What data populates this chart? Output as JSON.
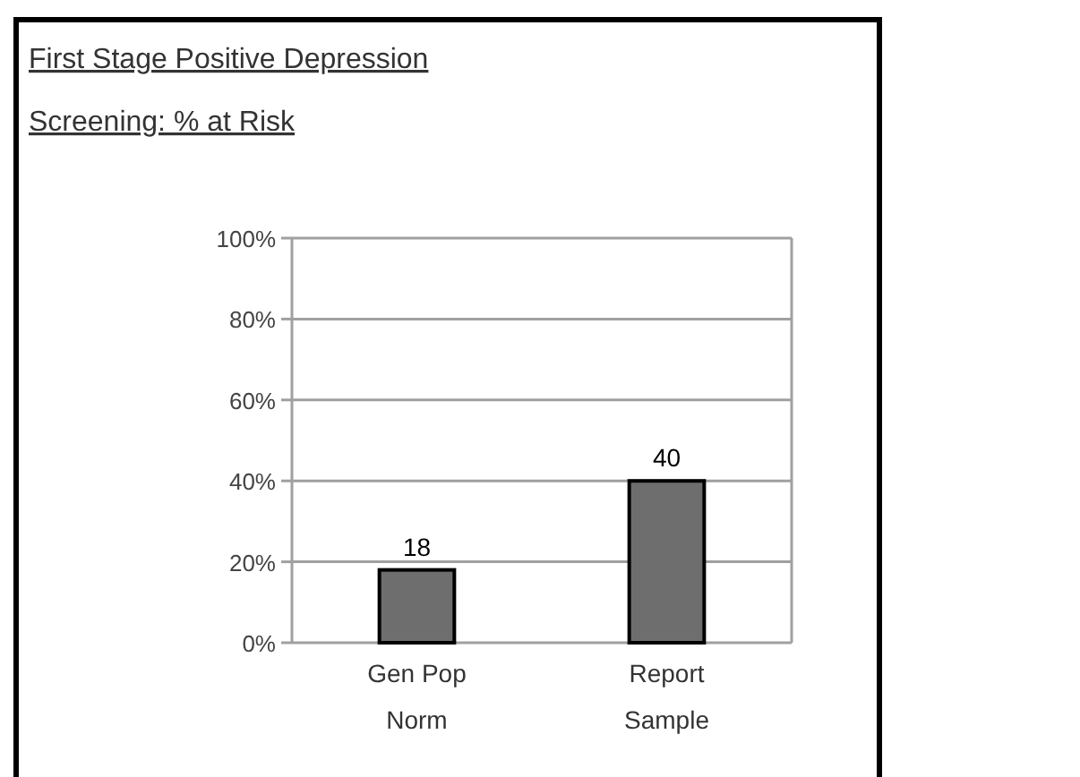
{
  "chart_data": {
    "type": "bar",
    "title": "First Stage Positive Depression Screening: % at Risk",
    "categories": [
      "Gen Pop Norm",
      "Report Sample"
    ],
    "values": [
      18,
      40
    ],
    "color": "#6e6e6e",
    "ylim": [
      0,
      100
    ],
    "yticks": [
      {
        "value": 0,
        "label": "0%"
      },
      {
        "value": 20,
        "label": "20%"
      },
      {
        "value": 40,
        "label": "40%"
      },
      {
        "value": 60,
        "label": "60%"
      },
      {
        "value": 80,
        "label": "80%"
      },
      {
        "value": 100,
        "label": "100%"
      }
    ],
    "grid": "y",
    "data_labels": true
  }
}
